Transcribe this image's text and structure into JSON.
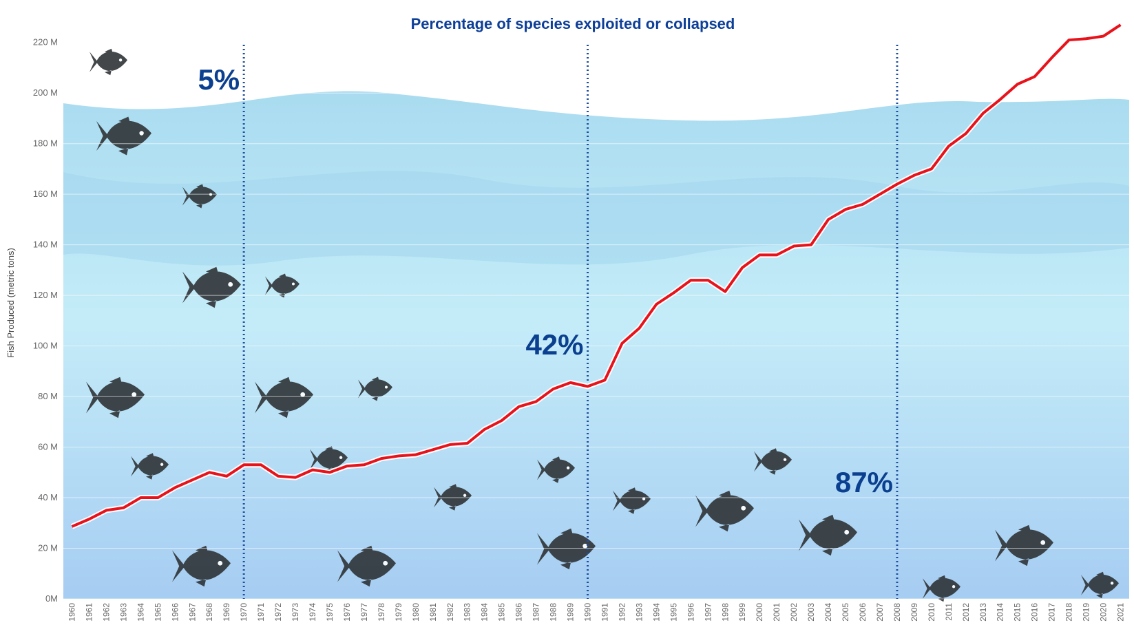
{
  "chart_data": {
    "type": "line",
    "title": "Percentage of species exploited or collapsed",
    "y_label": "Fish Produced (metric tons)",
    "categories": [
      "1960",
      "1961",
      "1962",
      "1963",
      "1964",
      "1965",
      "1966",
      "1967",
      "1968",
      "1969",
      "1970",
      "1971",
      "1972",
      "1973",
      "1974",
      "1975",
      "1976",
      "1977",
      "1978",
      "1979",
      "1980",
      "1981",
      "1982",
      "1983",
      "1984",
      "1985",
      "1986",
      "1987",
      "1988",
      "1989",
      "1990",
      "1991",
      "1992",
      "1993",
      "1994",
      "1995",
      "1996",
      "1997",
      "1998",
      "1999",
      "2000",
      "2001",
      "2002",
      "2003",
      "2004",
      "2005",
      "2006",
      "2007",
      "2008",
      "2009",
      "2010",
      "2011",
      "2012",
      "2013",
      "2014",
      "2015",
      "2016",
      "2017",
      "2018",
      "2019",
      "2020",
      "2021"
    ],
    "series": [
      {
        "name": "Fish Produced",
        "color": "#e8121b",
        "values": [
          28.6,
          31.5,
          35,
          36,
          40,
          40,
          44,
          47,
          50,
          48.5,
          53,
          53,
          48.5,
          48,
          51,
          50,
          52.5,
          53,
          55.5,
          56.5,
          57,
          59,
          61,
          61.5,
          67,
          70.5,
          76,
          78,
          83,
          85.5,
          84,
          86.5,
          101,
          107,
          116.5,
          121,
          126,
          126,
          121.5,
          131,
          136,
          136,
          139.5,
          140,
          150,
          154,
          156,
          160,
          164,
          167.5,
          170,
          179,
          184,
          192,
          197.5,
          203.5,
          206.5,
          214,
          221,
          221.5,
          222.5,
          227
        ]
      }
    ],
    "ylim": [
      0,
      230
    ],
    "yticks": [
      {
        "value": 0,
        "label": "0M"
      },
      {
        "value": 20,
        "label": "20  M"
      },
      {
        "value": 40,
        "label": "40  M"
      },
      {
        "value": 60,
        "label": "60  M"
      },
      {
        "value": 80,
        "label": "80  M"
      },
      {
        "value": 100,
        "label": "100  M"
      },
      {
        "value": 120,
        "label": "120  M"
      },
      {
        "value": 140,
        "label": "140  M"
      },
      {
        "value": 160,
        "label": "160  M"
      },
      {
        "value": 180,
        "label": "180  M"
      },
      {
        "value": 200,
        "label": "200  M"
      },
      {
        "value": 220,
        "label": "220  M"
      }
    ],
    "grid": true,
    "annotations": [
      {
        "year": "1970",
        "label": "5%"
      },
      {
        "year": "1990",
        "label": "42%"
      },
      {
        "year": "2008",
        "label": "87%"
      }
    ]
  }
}
